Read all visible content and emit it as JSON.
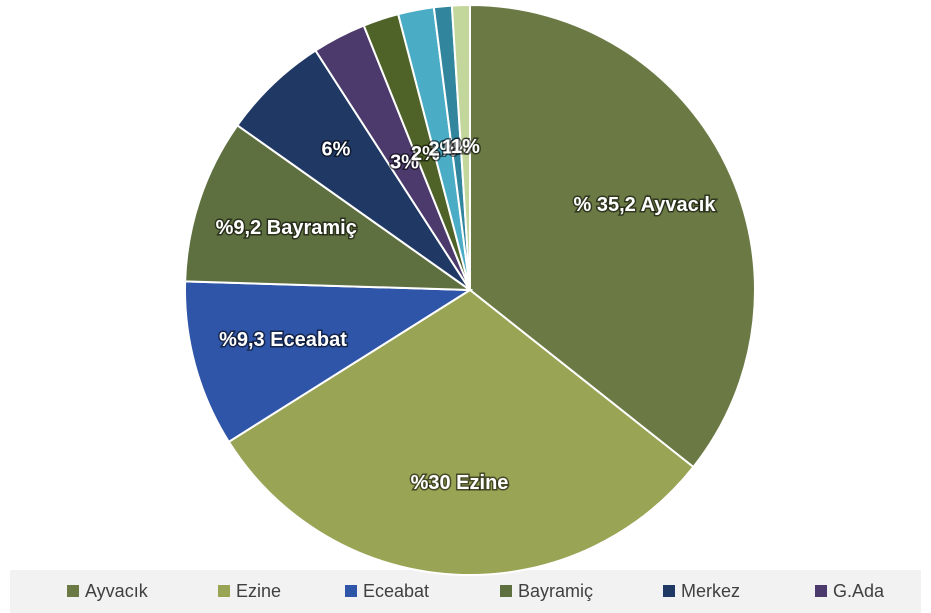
{
  "chart_data": {
    "type": "pie",
    "categories": [
      "Ayvacık",
      "Ezine",
      "Eceabat",
      "Bayramiç",
      "Merkez",
      "G.Ada",
      null,
      null,
      null,
      null
    ],
    "values": [
      35.2,
      30,
      9.3,
      9.2,
      6,
      3,
      2,
      2,
      1,
      1
    ],
    "value_labels": [
      "% 35,2 Ayvacık",
      "%30 Ezine",
      "%9,3 Eceabat",
      "%9,2 Bayramiç",
      "6%",
      "3%",
      "2%",
      "2%",
      "1%",
      "1%"
    ],
    "colors": [
      "#6b7a45",
      "#9aa455",
      "#2f55a8",
      "#5f7040",
      "#1f3864",
      "#4b3a6b",
      "#4f6228",
      "#4bacc6",
      "#31859c",
      "#c3d69b"
    ],
    "legend": "bottom"
  }
}
